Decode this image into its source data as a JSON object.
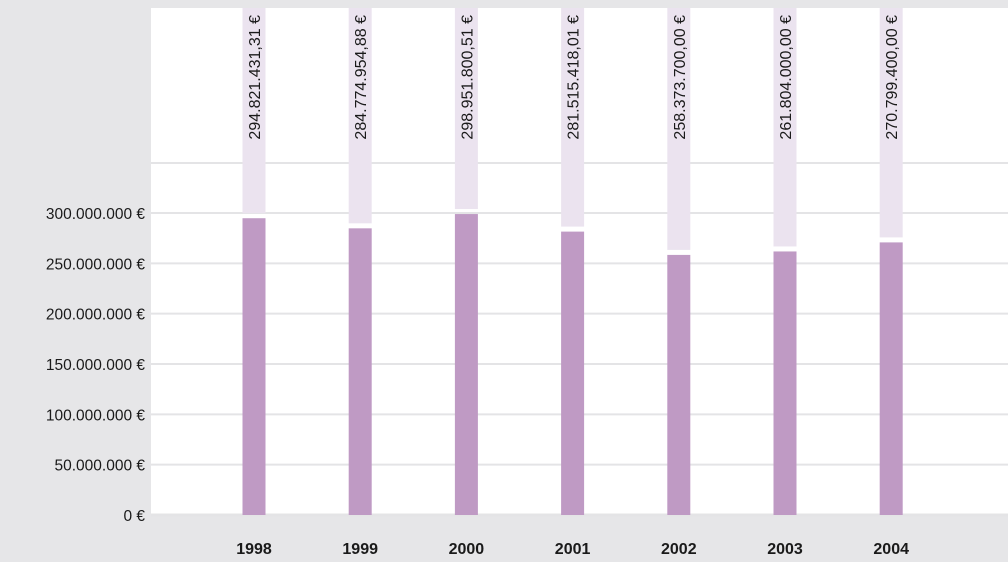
{
  "chart_data": {
    "type": "bar",
    "title": "",
    "xlabel": "",
    "ylabel": "",
    "categories": [
      "1998",
      "1999",
      "2000",
      "2001",
      "2002",
      "2003",
      "2004"
    ],
    "values": [
      294821431.31,
      284774954.88,
      298951800.51,
      281515418.01,
      258373700.0,
      261804000.0,
      270799400.0
    ],
    "data_labels": [
      "294.821.431,31 €",
      "284.774.954,88 €",
      "298.951.800,51 €",
      "281.515.418,01 €",
      "258.373.700,00 €",
      "261.804.000,00 €",
      "270.799.400,00 €"
    ],
    "ylim": [
      0,
      300000000
    ],
    "yticks": [
      0,
      50000000,
      100000000,
      150000000,
      200000000,
      250000000,
      300000000
    ],
    "ytick_labels": [
      "0 €",
      "50.000.000 €",
      "100.000.000 €",
      "150.000.000 €",
      "200.000.000 €",
      "250.000.000 €",
      "300.000.000 €"
    ],
    "grid": true,
    "legend": "none",
    "colors": {
      "bar": "#bf9ac4",
      "label_band": "#ebe3ef",
      "frame": "#e6e6e8",
      "grid": "#e4e4e6",
      "plot_background": "#ffffff"
    }
  }
}
